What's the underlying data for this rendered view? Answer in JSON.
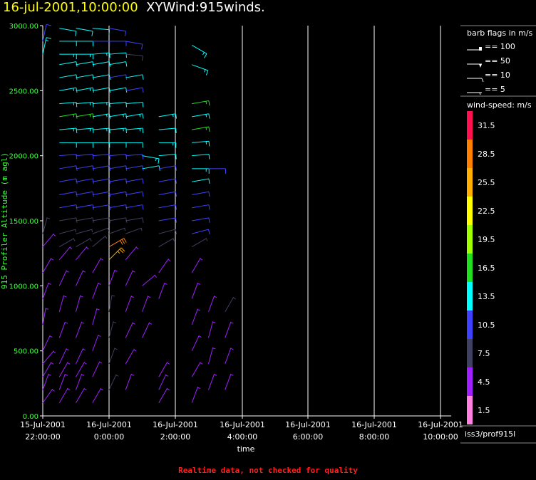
{
  "header": {
    "datetime": "16-jul-2001,10:00:00",
    "product": "XYWind:915winds."
  },
  "footer": {
    "warning": "Realtime data, not checked for quality"
  },
  "legend": {
    "barb_title": "barb flags in m/s",
    "barbs": [
      "== 100",
      "== 50",
      "== 10",
      "== 5"
    ],
    "speed_title": "wind-speed: m/s",
    "colors": [
      {
        "label": "31.5",
        "color": "#ff1050"
      },
      {
        "label": "28.5",
        "color": "#ff8000"
      },
      {
        "label": "25.5",
        "color": "#ffb000"
      },
      {
        "label": "22.5",
        "color": "#ffff00"
      },
      {
        "label": "19.5",
        "color": "#a0ff00"
      },
      {
        "label": "16.5",
        "color": "#20e020"
      },
      {
        "label": "13.5",
        "color": "#00ffff"
      },
      {
        "label": "10.5",
        "color": "#4040ff"
      },
      {
        "label": "7.5",
        "color": "#404060"
      },
      {
        "label": "4.5",
        "color": "#a020ff"
      },
      {
        "label": "1.5",
        "color": "#ff80e0"
      }
    ],
    "station": "iss3/prof915l"
  },
  "chart_data": {
    "type": "wind-barb",
    "ylabel": "915 Profiler Altitude (m agl)",
    "xlabel": "time",
    "ylim": [
      0,
      3000
    ],
    "yticks": [
      "0.00",
      "500.00",
      "1000.00",
      "1500.00",
      "2000.00",
      "2500.00",
      "3000.00"
    ],
    "xticks": [
      {
        "date": "15-Jul-2001",
        "time": "22:00:00"
      },
      {
        "date": "16-Jul-2001",
        "time": "0:00:00"
      },
      {
        "date": "16-Jul-2001",
        "time": "2:00:00"
      },
      {
        "date": "16-Jul-2001",
        "time": "4:00:00"
      },
      {
        "date": "16-Jul-2001",
        "time": "6:00:00"
      },
      {
        "date": "16-Jul-2001",
        "time": "8:00:00"
      },
      {
        "date": "16-Jul-2001",
        "time": "10:00:00"
      }
    ],
    "grid": true,
    "profiles": [
      {
        "time": "15-Jul-2001 22:00",
        "levels": [
          [
            2880,
            12,
            10
          ],
          [
            2780,
            12,
            14
          ],
          [
            1400,
            15,
            6
          ],
          [
            1300,
            40,
            5
          ],
          [
            1100,
            30,
            4
          ],
          [
            900,
            20,
            5
          ],
          [
            700,
            10,
            4
          ],
          [
            500,
            25,
            4
          ],
          [
            400,
            40,
            4
          ],
          [
            300,
            30,
            3
          ],
          [
            200,
            20,
            3
          ],
          [
            100,
            35,
            4
          ]
        ]
      },
      {
        "time": "15-Jul-2001 22:30",
        "levels": [
          [
            2980,
            100,
            12
          ],
          [
            2880,
            90,
            12
          ],
          [
            2780,
            90,
            14
          ],
          [
            2700,
            80,
            12
          ],
          [
            2600,
            80,
            12
          ],
          [
            2500,
            80,
            13
          ],
          [
            2400,
            85,
            13
          ],
          [
            2300,
            80,
            15
          ],
          [
            2200,
            85,
            14
          ],
          [
            2100,
            90,
            12
          ],
          [
            2000,
            85,
            11
          ],
          [
            1900,
            80,
            11
          ],
          [
            1800,
            80,
            10
          ],
          [
            1700,
            80,
            10
          ],
          [
            1600,
            80,
            9
          ],
          [
            1500,
            80,
            8
          ],
          [
            1400,
            75,
            7
          ],
          [
            1300,
            60,
            6
          ],
          [
            1200,
            40,
            5
          ],
          [
            1000,
            25,
            4
          ],
          [
            800,
            15,
            5
          ],
          [
            600,
            20,
            4
          ],
          [
            400,
            25,
            4
          ],
          [
            300,
            30,
            4
          ],
          [
            200,
            20,
            3
          ],
          [
            100,
            30,
            3
          ]
        ]
      },
      {
        "time": "15-Jul-2001 23:00",
        "levels": [
          [
            2980,
            100,
            12
          ],
          [
            2880,
            90,
            12
          ],
          [
            2780,
            90,
            14
          ],
          [
            2700,
            80,
            12
          ],
          [
            2600,
            80,
            12
          ],
          [
            2500,
            80,
            13
          ],
          [
            2400,
            85,
            13
          ],
          [
            2300,
            80,
            15
          ],
          [
            2200,
            85,
            14
          ],
          [
            2100,
            90,
            12
          ],
          [
            2000,
            85,
            11
          ],
          [
            1900,
            80,
            11
          ],
          [
            1800,
            80,
            10
          ],
          [
            1700,
            80,
            10
          ],
          [
            1600,
            80,
            9
          ],
          [
            1500,
            80,
            8
          ],
          [
            1400,
            75,
            7
          ],
          [
            1300,
            60,
            6
          ],
          [
            1200,
            40,
            5
          ],
          [
            1000,
            25,
            4
          ],
          [
            800,
            15,
            5
          ],
          [
            600,
            20,
            4
          ],
          [
            400,
            25,
            4
          ],
          [
            300,
            30,
            4
          ],
          [
            200,
            20,
            3
          ],
          [
            100,
            30,
            3
          ]
        ]
      },
      {
        "time": "15-Jul-2001 23:30",
        "levels": [
          [
            2980,
            95,
            12
          ],
          [
            2880,
            90,
            11
          ],
          [
            2780,
            85,
            13
          ],
          [
            2700,
            80,
            12
          ],
          [
            2600,
            80,
            12
          ],
          [
            2500,
            80,
            12
          ],
          [
            2400,
            85,
            13
          ],
          [
            2300,
            80,
            14
          ],
          [
            2200,
            85,
            13
          ],
          [
            2100,
            90,
            12
          ],
          [
            2000,
            85,
            11
          ],
          [
            1900,
            80,
            10
          ],
          [
            1800,
            80,
            10
          ],
          [
            1700,
            80,
            9
          ],
          [
            1600,
            80,
            9
          ],
          [
            1500,
            80,
            8
          ],
          [
            1400,
            70,
            7
          ],
          [
            1300,
            50,
            6
          ],
          [
            1100,
            30,
            5
          ],
          [
            900,
            20,
            4
          ],
          [
            700,
            15,
            4
          ],
          [
            500,
            20,
            4
          ],
          [
            300,
            25,
            3
          ],
          [
            100,
            30,
            3
          ]
        ]
      },
      {
        "time": "16-Jul-2001 0:00",
        "levels": [
          [
            2980,
            100,
            11
          ],
          [
            2880,
            90,
            11
          ],
          [
            2780,
            85,
            12
          ],
          [
            2700,
            80,
            12
          ],
          [
            2600,
            80,
            11
          ],
          [
            2500,
            80,
            12
          ],
          [
            2400,
            85,
            12
          ],
          [
            2300,
            80,
            14
          ],
          [
            2200,
            85,
            13
          ],
          [
            2100,
            90,
            12
          ],
          [
            2000,
            85,
            11
          ],
          [
            1900,
            80,
            10
          ],
          [
            1800,
            80,
            10
          ],
          [
            1700,
            80,
            9
          ],
          [
            1600,
            80,
            9
          ],
          [
            1500,
            80,
            8
          ],
          [
            1400,
            70,
            7
          ],
          [
            1300,
            60,
            28
          ],
          [
            1200,
            45,
            24
          ],
          [
            1000,
            20,
            5
          ],
          [
            800,
            10,
            6
          ],
          [
            600,
            15,
            7
          ],
          [
            400,
            20,
            6
          ],
          [
            200,
            25,
            6
          ]
        ]
      },
      {
        "time": "16-Jul-2001 0:30",
        "levels": [
          [
            2880,
            100,
            11
          ],
          [
            2780,
            95,
            8
          ],
          [
            2600,
            80,
            12
          ],
          [
            2500,
            80,
            11
          ],
          [
            2400,
            85,
            12
          ],
          [
            2300,
            80,
            13
          ],
          [
            2200,
            85,
            13
          ],
          [
            2100,
            90,
            12
          ],
          [
            2000,
            85,
            11
          ],
          [
            1900,
            80,
            10
          ],
          [
            1800,
            80,
            10
          ],
          [
            1700,
            80,
            9
          ],
          [
            1600,
            80,
            9
          ],
          [
            1500,
            80,
            8
          ],
          [
            1400,
            70,
            7
          ],
          [
            1200,
            40,
            5
          ],
          [
            1000,
            25,
            4
          ],
          [
            800,
            20,
            4
          ],
          [
            600,
            25,
            4
          ],
          [
            400,
            30,
            4
          ],
          [
            200,
            20,
            3
          ]
        ]
      },
      {
        "time": "16-Jul-2001 1:00",
        "levels": [
          [
            2000,
            100,
            14
          ],
          [
            1900,
            80,
            12
          ],
          [
            1000,
            50,
            5
          ],
          [
            800,
            20,
            5
          ],
          [
            600,
            25,
            4
          ]
        ]
      },
      {
        "time": "16-Jul-2001 1:30",
        "levels": [
          [
            2300,
            80,
            13
          ],
          [
            2200,
            85,
            12
          ],
          [
            2100,
            90,
            13
          ],
          [
            2000,
            85,
            12
          ],
          [
            1900,
            80,
            11
          ],
          [
            1800,
            80,
            11
          ],
          [
            1700,
            80,
            10
          ],
          [
            1600,
            80,
            10
          ],
          [
            1500,
            80,
            9
          ],
          [
            1400,
            75,
            8
          ],
          [
            1300,
            60,
            7
          ],
          [
            1100,
            35,
            5
          ],
          [
            900,
            20,
            4
          ],
          [
            300,
            30,
            5
          ],
          [
            200,
            25,
            4
          ],
          [
            100,
            30,
            4
          ]
        ]
      },
      {
        "time": "16-Jul-2001 2:30",
        "levels": [
          [
            2850,
            120,
            14
          ],
          [
            2700,
            110,
            13
          ],
          [
            2400,
            80,
            15
          ],
          [
            2300,
            80,
            14
          ],
          [
            2200,
            80,
            15
          ],
          [
            2100,
            85,
            13
          ],
          [
            2000,
            85,
            12
          ],
          [
            1900,
            90,
            13
          ],
          [
            1800,
            80,
            12
          ],
          [
            1700,
            80,
            11
          ],
          [
            1600,
            80,
            10
          ],
          [
            1500,
            80,
            9
          ],
          [
            1400,
            75,
            11
          ],
          [
            1300,
            60,
            6
          ],
          [
            1100,
            30,
            5
          ],
          [
            900,
            20,
            4
          ],
          [
            700,
            20,
            4
          ],
          [
            500,
            25,
            4
          ],
          [
            300,
            30,
            4
          ],
          [
            100,
            20,
            3
          ]
        ]
      },
      {
        "time": "16-Jul-2001 3:00",
        "levels": [
          [
            1900,
            90,
            10
          ],
          [
            800,
            20,
            5
          ],
          [
            600,
            15,
            5
          ],
          [
            400,
            15,
            5
          ],
          [
            200,
            20,
            4
          ]
        ]
      },
      {
        "time": "16-Jul-2001 3:30",
        "levels": [
          [
            800,
            30,
            6
          ],
          [
            600,
            20,
            5
          ],
          [
            400,
            20,
            5
          ],
          [
            200,
            20,
            5
          ]
        ]
      }
    ]
  }
}
